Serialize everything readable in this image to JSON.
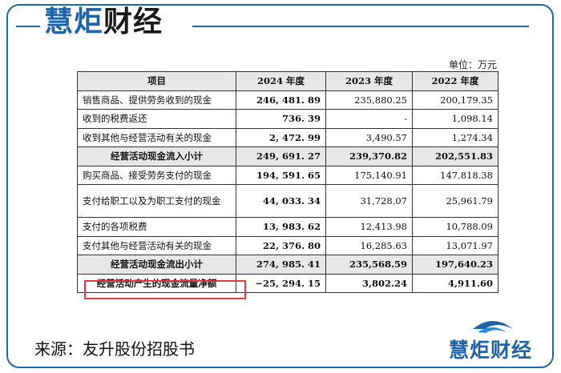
{
  "brand": {
    "name_main": "慧炬",
    "name_accent": "财经"
  },
  "unit_label": "单位：万元",
  "table": {
    "headers": [
      "项目",
      "2024 年度",
      "2023 年度",
      "2022 年度"
    ],
    "rows": [
      {
        "item": "销售商品、提供劳务收到的现金",
        "y2024": "246, 481. 89",
        "y2023": "235,880.25",
        "y2022": "200,179.35"
      },
      {
        "item": "收到的税费返还",
        "y2024": "736. 39",
        "y2023": "-",
        "y2022": "1,098.14"
      },
      {
        "item": "收到其他与经营活动有关的现金",
        "y2024": "2, 472. 99",
        "y2023": "3,490.57",
        "y2022": "1,274.34"
      },
      {
        "item": "经营活动现金流入小计",
        "y2024": "249, 691. 27",
        "y2023": "239,370.82",
        "y2022": "202,551.83"
      },
      {
        "item": "购买商品、接受劳务支付的现金",
        "y2024": "194, 591. 65",
        "y2023": "175,140.91",
        "y2022": "147,818.38"
      },
      {
        "item": "支付给职工以及为职工支付的现金",
        "y2024": "44, 033. 34",
        "y2023": "31,728.07",
        "y2022": "25,961.79"
      },
      {
        "item": "支付的各项税费",
        "y2024": "13, 983. 62",
        "y2023": "12,413.98",
        "y2022": "10,788.09"
      },
      {
        "item": "支付其他与经营活动有关的现金",
        "y2024": "22, 376. 80",
        "y2023": "16,285.63",
        "y2022": "13,071.97"
      },
      {
        "item": "经营活动现金流出小计",
        "y2024": "274, 985. 41",
        "y2023": "235,568.59",
        "y2022": "197,640.23"
      },
      {
        "item": "经营活动产生的现金流量净额",
        "y2024": "−25, 294. 15",
        "y2023": "3,802.24",
        "y2022": "4,911.60"
      }
    ]
  },
  "source_text": "来源：友升股份招股书",
  "logo_text": "慧炬财经",
  "colors": {
    "brand_blue": "#1f63a8",
    "highlight_red": "#e23b3b",
    "header_gray": "#e7e7e7"
  }
}
